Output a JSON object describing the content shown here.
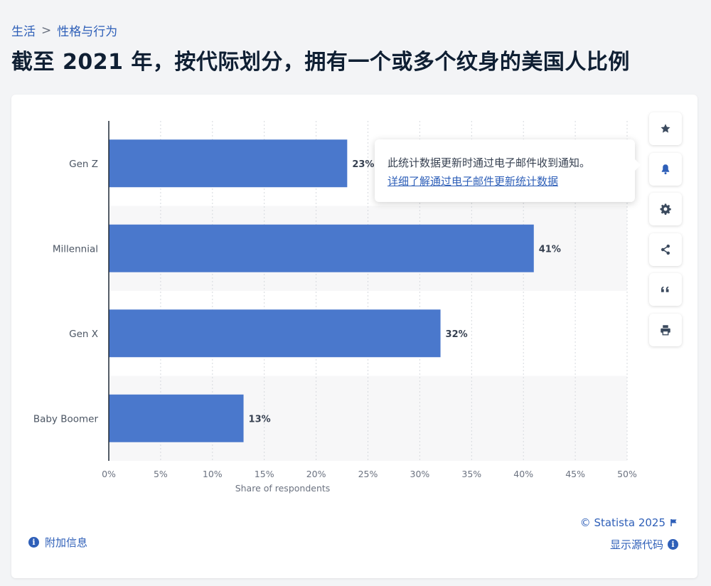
{
  "breadcrumb": {
    "parent": "生活",
    "separator": ">",
    "current": "性格与行为"
  },
  "title": "截至 2021 年，按代际划分，拥有一个或多个纹身的美国人比例",
  "tooltip": {
    "message": "此统计数据更新时通过电子邮件收到通知。",
    "link": "详细了解通过电子邮件更新统计数据"
  },
  "tools": [
    {
      "name": "favorite-button",
      "icon": "star-icon"
    },
    {
      "name": "notification-button",
      "icon": "bell-icon"
    },
    {
      "name": "settings-button",
      "icon": "gear-icon"
    },
    {
      "name": "share-button",
      "icon": "share-icon"
    },
    {
      "name": "cite-button",
      "icon": "quote-icon"
    },
    {
      "name": "print-button",
      "icon": "printer-icon"
    }
  ],
  "footer": {
    "copyright": "© Statista 2025",
    "show_source": "显示源代码",
    "extra_info": "附加信息"
  },
  "colors": {
    "bar": "#4a78cc",
    "accent": "#2e5fb8",
    "icon": "#3b4a5e"
  },
  "chart_data": {
    "type": "bar",
    "orientation": "horizontal",
    "categories": [
      "Gen Z",
      "Millennial",
      "Gen X",
      "Baby Boomer"
    ],
    "values": [
      23,
      41,
      32,
      13
    ],
    "value_labels": [
      "23%",
      "41%",
      "32%",
      "13%"
    ],
    "xlabel": "Share of respondents",
    "xlim": [
      0,
      50
    ],
    "x_ticks": [
      "0%",
      "5%",
      "10%",
      "15%",
      "20%",
      "25%",
      "30%",
      "35%",
      "40%",
      "45%",
      "50%"
    ],
    "grid": true
  }
}
